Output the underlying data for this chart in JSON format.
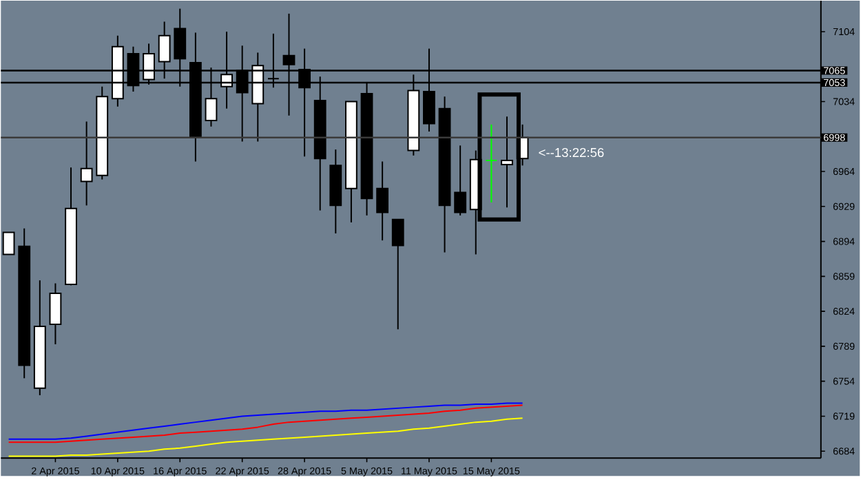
{
  "chart_data": {
    "type": "candlestick",
    "categories": [
      null,
      null,
      null,
      "2 Apr 2015",
      null,
      null,
      null,
      "10 Apr 2015",
      null,
      null,
      null,
      "16 Apr 2015",
      null,
      null,
      null,
      "22 Apr 2015",
      null,
      null,
      null,
      "28 Apr 2015",
      null,
      null,
      null,
      "5 May 2015",
      null,
      null,
      null,
      "11 May 2015",
      null,
      null,
      null,
      "15 May 2015",
      null,
      null
    ],
    "ohlc": [
      [
        6881,
        6903,
        6881,
        6903
      ],
      [
        6889,
        6907,
        6757,
        6770
      ],
      [
        6747,
        6855,
        6740,
        6809
      ],
      [
        6811,
        6852,
        6791,
        6842
      ],
      [
        6851,
        6968,
        6850,
        6927
      ],
      [
        6954,
        7014,
        6930,
        6967
      ],
      [
        6960,
        7049,
        6956,
        7039
      ],
      [
        7037,
        7100,
        7029,
        7089
      ],
      [
        7082,
        7089,
        7044,
        7050
      ],
      [
        7056,
        7092,
        7051,
        7082
      ],
      [
        7074,
        7114,
        7057,
        7100
      ],
      [
        7107,
        7127,
        7049,
        7077
      ],
      [
        7073,
        7103,
        6974,
        6999
      ],
      [
        7015,
        7068,
        7009,
        7037
      ],
      [
        7049,
        7104,
        7027,
        7061
      ],
      [
        7065,
        7090,
        6994,
        7043
      ],
      [
        7032,
        7083,
        6994,
        7070
      ],
      [
        7057,
        7102,
        7048,
        7057
      ],
      [
        7080,
        7122,
        7020,
        7071
      ],
      [
        7066,
        7087,
        6979,
        7048
      ],
      [
        7035,
        7059,
        6925,
        6977
      ],
      [
        6970,
        6986,
        6902,
        6930
      ],
      [
        6947,
        7034,
        6913,
        7034
      ],
      [
        7042,
        7053,
        6920,
        6937
      ],
      [
        6947,
        6974,
        6895,
        6923
      ],
      [
        6916,
        6916,
        6806,
        6890
      ],
      [
        6985,
        7061,
        6980,
        7045
      ],
      [
        7044,
        7087,
        7004,
        7012
      ],
      [
        7027,
        7039,
        6883,
        6930
      ],
      [
        6943,
        6990,
        6920,
        6923
      ],
      [
        6926,
        6985,
        6881,
        6976
      ],
      [
        6975,
        7011,
        6933,
        6975
      ],
      [
        6971,
        7019,
        6928,
        6975
      ],
      [
        6977,
        7011,
        6970,
        6998
      ]
    ],
    "colors": [
      "#ffffff",
      "#000000",
      "#ffffff",
      "#ffffff",
      "#ffffff",
      "#ffffff",
      "#ffffff",
      "#ffffff",
      "#000000",
      "#ffffff",
      "#ffffff",
      "#000000",
      "#000000",
      "#ffffff",
      "#ffffff",
      "#000000",
      "#ffffff",
      "#000000",
      "#000000",
      "#000000",
      "#000000",
      "#000000",
      "#ffffff",
      "#000000",
      "#000000",
      "#000000",
      "#ffffff",
      "#000000",
      "#000000",
      "#000000",
      "#ffffff",
      "#00ff00",
      "#ffffff",
      "#ffffff"
    ],
    "series": [
      {
        "type": "line",
        "color": "#0000ff",
        "values": [
          6696,
          6696,
          6696,
          6696,
          6697,
          6699,
          6701,
          6703,
          6705,
          6707,
          6709,
          6711,
          6713,
          6715,
          6717,
          6719,
          6720,
          6721,
          6722,
          6723,
          6724,
          6724,
          6725,
          6725,
          6726,
          6727,
          6728,
          6729,
          6730,
          6730,
          6731,
          6731,
          6732,
          6732
        ]
      },
      {
        "type": "line",
        "color": "#ff0000",
        "values": [
          6693,
          6693,
          6693,
          6693,
          6694,
          6695,
          6696,
          6697,
          6698,
          6699,
          6700,
          6702,
          6703,
          6704,
          6705,
          6706,
          6708,
          6711,
          6713,
          6714,
          6715,
          6716,
          6717,
          6718,
          6719,
          6720,
          6721,
          6722,
          6724,
          6725,
          6727,
          6728,
          6729,
          6730
        ]
      },
      {
        "type": "line",
        "color": "#ffff00",
        "values": [
          6679,
          6679,
          6679,
          6679,
          6680,
          6680,
          6681,
          6682,
          6683,
          6684,
          6686,
          6687,
          6689,
          6691,
          6693,
          6694,
          6695,
          6696,
          6697,
          6698,
          6699,
          6700,
          6701,
          6702,
          6703,
          6704,
          6706,
          6707,
          6709,
          6711,
          6713,
          6714,
          6716,
          6717
        ]
      }
    ],
    "ylim": [
      6677,
      7135
    ],
    "yticks": [
      6684,
      6719,
      6754,
      6789,
      6824,
      6859,
      6894,
      6929,
      6964,
      7034,
      7104
    ],
    "ref_lines": [
      {
        "axis": "y",
        "value": 7065,
        "label": "7065",
        "color": "#000000"
      },
      {
        "axis": "y",
        "value": 7053,
        "label": "7053",
        "color": "#000000"
      },
      {
        "axis": "y",
        "value": 6998,
        "label": "6998",
        "color": "#3a3a3a"
      }
    ],
    "annotations": [
      "<--13:22:56"
    ]
  }
}
